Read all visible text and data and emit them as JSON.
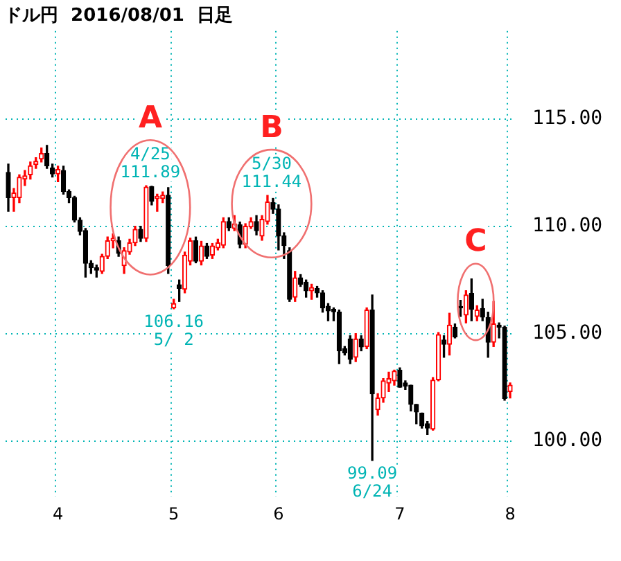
{
  "chart_data": {
    "type": "candlestick",
    "title": "ドル円  2016/08/01  日足",
    "categories": [
      null,
      null,
      null,
      null,
      null,
      null,
      null,
      null,
      null,
      "4",
      null,
      null,
      null,
      null,
      null,
      null,
      null,
      null,
      null,
      null,
      null,
      null,
      null,
      null,
      null,
      null,
      null,
      null,
      null,
      null,
      "5",
      null,
      null,
      null,
      null,
      null,
      null,
      null,
      null,
      null,
      null,
      null,
      null,
      null,
      null,
      null,
      null,
      null,
      null,
      "6",
      null,
      null,
      null,
      null,
      null,
      null,
      null,
      null,
      null,
      null,
      null,
      null,
      null,
      null,
      null,
      null,
      null,
      null,
      null,
      null,
      null,
      "7",
      null,
      null,
      null,
      null,
      null,
      null,
      null,
      null,
      null,
      null,
      null,
      null,
      null,
      null,
      null,
      null,
      null,
      null,
      null,
      "8"
    ],
    "ohlc": [
      [
        112.51,
        112.9,
        110.7,
        111.34
      ],
      [
        111.34,
        111.76,
        110.7,
        111.55
      ],
      [
        111.34,
        112.4,
        111.1,
        112.29
      ],
      [
        112.2,
        112.6,
        111.9,
        112.35
      ],
      [
        112.4,
        113.0,
        112.2,
        112.82
      ],
      [
        112.88,
        113.2,
        112.7,
        113.03
      ],
      [
        113.14,
        113.65,
        113.0,
        113.39
      ],
      [
        113.39,
        113.77,
        112.7,
        112.82
      ],
      [
        112.72,
        112.9,
        112.3,
        112.44
      ],
      [
        112.44,
        112.8,
        112.08,
        112.65
      ],
      [
        112.6,
        112.8,
        111.5,
        111.62
      ],
      [
        111.62,
        111.7,
        111.1,
        111.34
      ],
      [
        111.34,
        111.4,
        110.2,
        110.29
      ],
      [
        110.29,
        110.4,
        109.6,
        109.76
      ],
      [
        109.8,
        109.9,
        107.63,
        108.28
      ],
      [
        108.28,
        108.4,
        107.8,
        108.07
      ],
      [
        108.07,
        108.2,
        107.63,
        107.96
      ],
      [
        107.9,
        108.7,
        107.8,
        108.6
      ],
      [
        108.6,
        109.5,
        108.5,
        109.33
      ],
      [
        109.33,
        109.65,
        109.0,
        109.44
      ],
      [
        109.33,
        109.5,
        108.6,
        108.74
      ],
      [
        108.17,
        109.0,
        107.8,
        108.87
      ],
      [
        108.8,
        109.4,
        108.7,
        109.23
      ],
      [
        109.23,
        110.0,
        109.1,
        109.86
      ],
      [
        109.86,
        110.0,
        109.3,
        109.44
      ],
      [
        109.44,
        111.89,
        109.3,
        111.83
      ],
      [
        111.85,
        111.87,
        111.0,
        111.17
      ],
      [
        111.3,
        111.5,
        110.7,
        111.4
      ],
      [
        111.3,
        111.6,
        111.1,
        111.45
      ],
      [
        111.45,
        111.8,
        107.8,
        108.17
      ],
      [
        106.2,
        106.6,
        106.16,
        106.4
      ],
      [
        107.28,
        107.5,
        106.5,
        107.11
      ],
      [
        107.07,
        108.8,
        106.9,
        108.66
      ],
      [
        108.38,
        109.45,
        108.2,
        109.33
      ],
      [
        109.33,
        109.5,
        108.3,
        108.38
      ],
      [
        108.38,
        109.3,
        108.2,
        109.08
      ],
      [
        109.08,
        109.2,
        108.5,
        108.6
      ],
      [
        108.66,
        109.2,
        108.5,
        109.08
      ],
      [
        109.0,
        109.4,
        108.9,
        109.23
      ],
      [
        109.12,
        110.4,
        109.0,
        110.22
      ],
      [
        110.22,
        110.4,
        109.8,
        109.93
      ],
      [
        109.9,
        110.5,
        109.8,
        110.12
      ],
      [
        110.07,
        110.2,
        109.0,
        109.16
      ],
      [
        109.16,
        110.12,
        109.0,
        110.0
      ],
      [
        109.97,
        110.4,
        109.9,
        110.22
      ],
      [
        110.22,
        110.5,
        109.6,
        109.8
      ],
      [
        109.55,
        110.5,
        109.35,
        110.33
      ],
      [
        110.22,
        111.44,
        110.1,
        111.13
      ],
      [
        111.1,
        111.3,
        110.6,
        110.8
      ],
      [
        110.8,
        111.0,
        108.9,
        109.55
      ],
      [
        109.55,
        109.7,
        108.5,
        109.1
      ],
      [
        108.87,
        109.0,
        106.5,
        106.6
      ],
      [
        106.7,
        107.9,
        106.5,
        107.6
      ],
      [
        107.6,
        107.75,
        107.2,
        107.3
      ],
      [
        107.4,
        107.5,
        106.7,
        107.0
      ],
      [
        107.0,
        107.3,
        106.6,
        107.15
      ],
      [
        107.1,
        107.2,
        106.7,
        106.9
      ],
      [
        106.9,
        107.0,
        106.0,
        106.2
      ],
      [
        106.28,
        106.4,
        105.6,
        106.06
      ],
      [
        106.13,
        106.2,
        105.6,
        106.02
      ],
      [
        106.0,
        106.1,
        103.6,
        104.2
      ],
      [
        104.3,
        104.4,
        104.0,
        104.1
      ],
      [
        104.75,
        104.9,
        103.6,
        103.8
      ],
      [
        103.9,
        105.0,
        103.7,
        104.75
      ],
      [
        104.75,
        104.9,
        104.2,
        104.38
      ],
      [
        104.4,
        106.2,
        104.3,
        106.1
      ],
      [
        106.1,
        106.8,
        99.09,
        102.2
      ],
      [
        101.45,
        102.2,
        101.2,
        102.0
      ],
      [
        102.0,
        102.9,
        101.8,
        102.8
      ],
      [
        102.7,
        103.2,
        102.3,
        102.9
      ],
      [
        102.8,
        103.3,
        102.6,
        103.25
      ],
      [
        103.3,
        103.4,
        102.5,
        102.5
      ],
      [
        102.7,
        102.8,
        102.4,
        102.55
      ],
      [
        102.6,
        102.6,
        101.4,
        101.7
      ],
      [
        101.7,
        101.7,
        100.8,
        101.35
      ],
      [
        101.3,
        101.3,
        100.6,
        100.7
      ],
      [
        100.8,
        100.9,
        100.3,
        100.6
      ],
      [
        100.55,
        102.95,
        100.5,
        102.83
      ],
      [
        102.85,
        105.05,
        102.8,
        104.95
      ],
      [
        104.7,
        104.9,
        103.9,
        104.5
      ],
      [
        104.5,
        105.95,
        104.0,
        105.4
      ],
      [
        105.3,
        105.45,
        104.8,
        104.85
      ],
      [
        106.22,
        106.55,
        105.8,
        106.2
      ],
      [
        105.87,
        107.0,
        105.5,
        106.8
      ],
      [
        106.87,
        107.55,
        105.6,
        106.13
      ],
      [
        105.8,
        106.3,
        105.6,
        106.1
      ],
      [
        106.17,
        106.6,
        105.6,
        105.77
      ],
      [
        105.75,
        106.0,
        103.9,
        104.6
      ],
      [
        104.6,
        106.5,
        104.4,
        105.45
      ],
      [
        105.4,
        105.5,
        104.8,
        105.3
      ],
      [
        105.3,
        105.35,
        101.9,
        101.98
      ],
      [
        102.3,
        102.7,
        102.0,
        102.6
      ]
    ],
    "ylim": [
      97.4,
      119.1
    ],
    "yticks": [
      {
        "value": 100,
        "label": "100.00"
      },
      {
        "value": 105,
        "label": "105.00"
      },
      {
        "value": 110,
        "label": "110.00"
      },
      {
        "value": 115,
        "label": "115.00"
      }
    ],
    "grid": true,
    "annotations": [
      {
        "text": "111.89",
        "y": 111.89
      },
      {
        "text": "4/25",
        "y": 111.89
      },
      {
        "text": "A",
        "y": 111.89
      },
      {
        "text": "106.16",
        "y": 106.16
      },
      {
        "text": "5/ 2",
        "y": 106.16
      },
      {
        "text": "111.44",
        "y": 111.44
      },
      {
        "text": "5/30",
        "y": 111.44
      },
      {
        "text": "B",
        "y": 111.44
      },
      {
        "text": "99.09",
        "y": 99.09
      },
      {
        "text": "6/24",
        "y": 99.09
      },
      {
        "text": "C",
        "y": 107.55
      }
    ]
  }
}
